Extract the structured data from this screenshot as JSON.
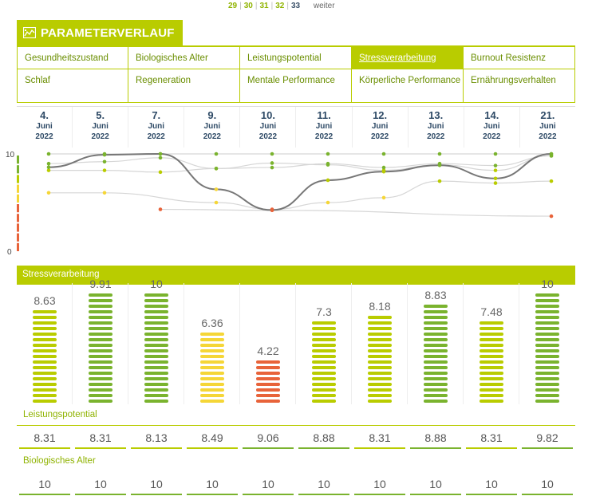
{
  "pagination": {
    "pages": [
      "29",
      "30",
      "31",
      "32",
      "33"
    ],
    "current": "33",
    "next_label": "weiter"
  },
  "header": {
    "title": "PARAMETERVERLAUF",
    "icon": "chart-icon"
  },
  "tabs": [
    {
      "label": "Gesundheitszustand",
      "active": false
    },
    {
      "label": "Biologisches Alter",
      "active": false
    },
    {
      "label": "Leistungspotential",
      "active": false
    },
    {
      "label": "Stressverarbeitung",
      "active": true
    },
    {
      "label": "Burnout Resistenz",
      "active": false
    },
    {
      "label": "Schlaf",
      "active": false
    },
    {
      "label": "Regeneration",
      "active": false
    },
    {
      "label": "Mentale Performance",
      "active": false
    },
    {
      "label": "Körperliche Performance",
      "active": false
    },
    {
      "label": "Ernährungsverhalten",
      "active": false
    }
  ],
  "dates": [
    {
      "day": "4.",
      "month": "Juni",
      "year": "2022"
    },
    {
      "day": "5.",
      "month": "Juni",
      "year": "2022"
    },
    {
      "day": "7.",
      "month": "Juni",
      "year": "2022"
    },
    {
      "day": "9.",
      "month": "Juni",
      "year": "2022"
    },
    {
      "day": "10.",
      "month": "Juni",
      "year": "2022"
    },
    {
      "day": "11.",
      "month": "Juni",
      "year": "2022"
    },
    {
      "day": "12.",
      "month": "Juni",
      "year": "2022"
    },
    {
      "day": "13.",
      "month": "Juni",
      "year": "2022"
    },
    {
      "day": "14.",
      "month": "Juni",
      "year": "2022"
    },
    {
      "day": "21.",
      "month": "Juni",
      "year": "2022"
    }
  ],
  "chart_data": {
    "type": "line",
    "x": [
      "4. Juni 2022",
      "5. Juni 2022",
      "7. Juni 2022",
      "9. Juni 2022",
      "10. Juni 2022",
      "11. Juni 2022",
      "12. Juni 2022",
      "13. Juni 2022",
      "14. Juni 2022",
      "21. Juni 2022"
    ],
    "ylim": [
      0,
      10
    ],
    "yticks": [
      "0",
      "10"
    ],
    "highlight_series": 0,
    "series": [
      {
        "values": [
          8.63,
          9.91,
          10,
          6.36,
          4.22,
          7.3,
          8.18,
          8.83,
          7.48,
          10
        ]
      },
      {
        "values": [
          10,
          10,
          10,
          10,
          10,
          10,
          10,
          10,
          10,
          10
        ]
      },
      {
        "values": [
          8.31,
          8.31,
          8.13,
          8.49,
          9.06,
          8.88,
          8.31,
          8.88,
          8.31,
          9.82
        ]
      },
      {
        "values": [
          9.0,
          9.2,
          9.6,
          8.5,
          8.6,
          9.0,
          8.6,
          9.0,
          8.8,
          9.8
        ]
      },
      {
        "values": [
          6.0,
          6.0,
          null,
          5.0,
          4.3,
          5.0,
          5.5,
          7.2,
          7.0,
          7.2
        ]
      },
      {
        "values": [
          null,
          null,
          4.3,
          null,
          4.2,
          null,
          null,
          null,
          null,
          3.6
        ]
      }
    ]
  },
  "stress_section": {
    "title": "Stressverarbeitung",
    "values": [
      {
        "label": "8.63",
        "value": 8.63,
        "color": "#b9cc00"
      },
      {
        "label": "9.91",
        "value": 9.91,
        "color": "#7ab32e"
      },
      {
        "label": "10",
        "value": 10,
        "color": "#7ab32e"
      },
      {
        "label": "6.36",
        "value": 6.36,
        "color": "#f5d637"
      },
      {
        "label": "4.22",
        "value": 4.22,
        "color": "#e8633a"
      },
      {
        "label": "7.3",
        "value": 7.3,
        "color": "#b9cc00"
      },
      {
        "label": "8.18",
        "value": 8.18,
        "color": "#b9cc00"
      },
      {
        "label": "8.83",
        "value": 8.83,
        "color": "#7ab32e"
      },
      {
        "label": "7.48",
        "value": 7.48,
        "color": "#b9cc00"
      },
      {
        "label": "10",
        "value": 10,
        "color": "#7ab32e"
      }
    ]
  },
  "leistungspotential": {
    "title": "Leistungspotential",
    "values": [
      "8.31",
      "8.31",
      "8.13",
      "8.49",
      "9.06",
      "8.88",
      "8.31",
      "8.88",
      "8.31",
      "9.82"
    ],
    "colors": [
      "#b9cc00",
      "#b9cc00",
      "#b9cc00",
      "#b9cc00",
      "#7ab32e",
      "#7ab32e",
      "#b9cc00",
      "#7ab32e",
      "#b9cc00",
      "#7ab32e"
    ]
  },
  "biologisches_alter": {
    "title": "Biologisches Alter",
    "values": [
      "10",
      "10",
      "10",
      "10",
      "10",
      "10",
      "10",
      "10",
      "10",
      "10"
    ],
    "colors": [
      "#7ab32e",
      "#7ab32e",
      "#7ab32e",
      "#7ab32e",
      "#7ab32e",
      "#7ab32e",
      "#7ab32e",
      "#7ab32e",
      "#7ab32e",
      "#7ab32e"
    ]
  },
  "colors": {
    "accent": "#b9cc00",
    "good": "#7ab32e",
    "medium": "#f5d637",
    "bad": "#e8633a",
    "date_text": "#2e4a66"
  }
}
